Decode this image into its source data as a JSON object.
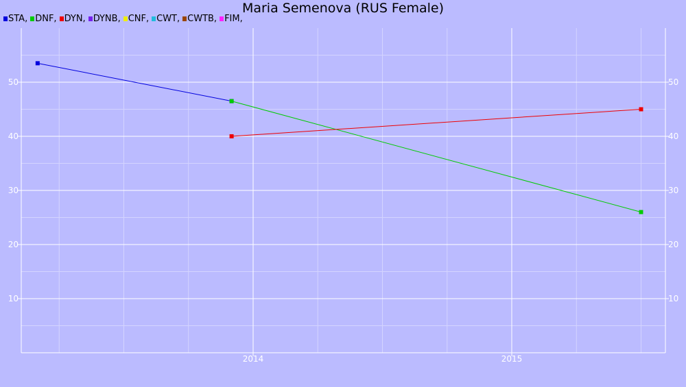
{
  "chart_data": {
    "type": "line",
    "title": "Maria Semenova (RUS Female)",
    "xlabel": "",
    "ylabel": "",
    "x_ticks": [
      "2014",
      "2015"
    ],
    "y_ticks": [
      10,
      20,
      30,
      40,
      50
    ],
    "ylim": [
      0,
      60
    ],
    "grid": true,
    "legend_position": "top-left",
    "legend": [
      {
        "label": "STA,",
        "color": "#0000dd"
      },
      {
        "label": "DNF,",
        "color": "#00cc00"
      },
      {
        "label": "DYN,",
        "color": "#ee0000"
      },
      {
        "label": "DYNB,",
        "color": "#7722ee"
      },
      {
        "label": "CNF,",
        "color": "#eeee00"
      },
      {
        "label": "CWT,",
        "color": "#22bbdd"
      },
      {
        "label": "CWTB,",
        "color": "#994400"
      },
      {
        "label": "FIM,",
        "color": "#ff22ff"
      }
    ],
    "series": [
      {
        "name": "STA",
        "color": "#0000dd",
        "x": [
          "2013-03",
          "2013-12"
        ],
        "values": [
          53.5,
          46.5
        ]
      },
      {
        "name": "DNF",
        "color": "#00cc00",
        "x": [
          "2013-12",
          "2015-07"
        ],
        "values": [
          46.5,
          26
        ]
      },
      {
        "name": "DYN",
        "color": "#ee0000",
        "x": [
          "2013-12",
          "2015-07"
        ],
        "values": [
          40,
          45
        ]
      }
    ]
  }
}
